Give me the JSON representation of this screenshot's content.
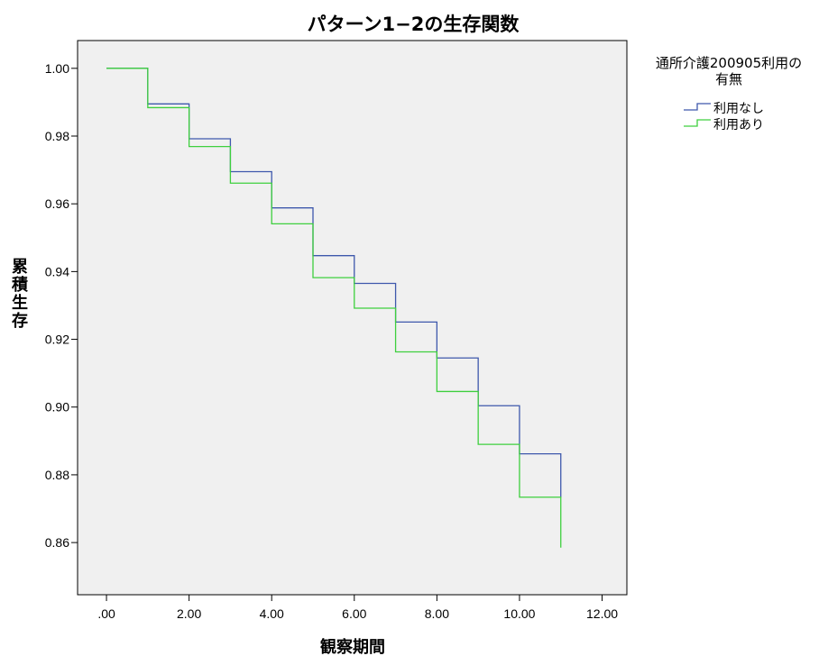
{
  "chart_data": {
    "type": "line",
    "step": true,
    "title": "パターン1−2の生存関数",
    "xlabel": "観察期間",
    "ylabel": "累積生存",
    "xlim": [
      -0.7,
      12.6
    ],
    "ylim": [
      0.8446,
      1.0082
    ],
    "x_ticks": [
      0,
      2,
      4,
      6,
      8,
      10,
      12
    ],
    "x_tick_labels": [
      ".00",
      "2.00",
      "4.00",
      "6.00",
      "8.00",
      "10.00",
      "12.00"
    ],
    "y_ticks": [
      0.86,
      0.88,
      0.9,
      0.92,
      0.94,
      0.96,
      0.98,
      1.0
    ],
    "y_tick_labels": [
      "0.86",
      "0.88",
      "0.90",
      "0.92",
      "0.94",
      "0.96",
      "0.98",
      "1.00"
    ],
    "grid": false,
    "plot_background": "#f0f0f0",
    "legend": {
      "title_lines": [
        "通所介護200905利用の",
        "有無"
      ],
      "position": "right"
    },
    "series": [
      {
        "name": "利用なし",
        "color": "#3e58ac",
        "x": [
          0,
          1,
          2,
          3,
          4,
          5,
          6,
          7,
          8,
          9,
          10,
          11
        ],
        "y": [
          1.0,
          0.9895,
          0.9792,
          0.9695,
          0.9588,
          0.9447,
          0.9365,
          0.9251,
          0.9145,
          0.9004,
          0.8862,
          0.8733
        ]
      },
      {
        "name": "利用あり",
        "color": "#3ecf3e",
        "x": [
          0,
          1,
          2,
          3,
          4,
          5,
          6,
          7,
          8,
          9,
          10,
          11
        ],
        "y": [
          1.0,
          0.9884,
          0.9769,
          0.9661,
          0.9541,
          0.9382,
          0.9292,
          0.9163,
          0.9046,
          0.889,
          0.8734,
          0.8585
        ]
      }
    ]
  }
}
